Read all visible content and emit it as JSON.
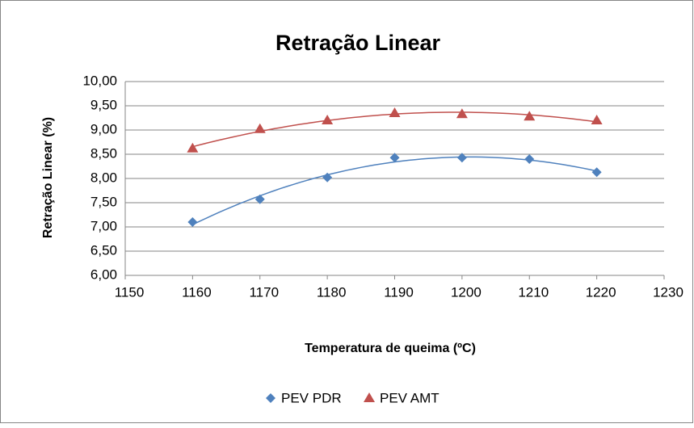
{
  "chart_data": {
    "type": "scatter",
    "title": "Retração Linear",
    "xlabel": "Temperatura de queima (ºC)",
    "ylabel": "Retração Linear (%)",
    "x": [
      1160,
      1170,
      1180,
      1190,
      1200,
      1210,
      1220
    ],
    "series": [
      {
        "name": "PEV PDR",
        "color": "#4f81bd",
        "marker": "diamond",
        "values": [
          7.1,
          7.57,
          8.02,
          8.43,
          8.43,
          8.4,
          8.13
        ]
      },
      {
        "name": "PEV AMT",
        "color": "#c0504d",
        "marker": "triangle",
        "values": [
          8.62,
          9.02,
          9.2,
          9.35,
          9.33,
          9.28,
          9.2
        ]
      }
    ],
    "trendline": "polynomial",
    "xlim": [
      1150,
      1230
    ],
    "xticks": [
      1150,
      1160,
      1170,
      1180,
      1190,
      1200,
      1210,
      1220,
      1230
    ],
    "ylim": [
      6,
      10
    ],
    "yticks": [
      {
        "value": 6,
        "label": "6,00"
      },
      {
        "value": 6.5,
        "label": "6,50"
      },
      {
        "value": 7,
        "label": "7,00"
      },
      {
        "value": 7.5,
        "label": "7,50"
      },
      {
        "value": 8,
        "label": "8,00"
      },
      {
        "value": 8.5,
        "label": "8,50"
      },
      {
        "value": 9,
        "label": "9,00"
      },
      {
        "value": 9.5,
        "label": "9,50"
      },
      {
        "value": 10,
        "label": "10,00"
      }
    ],
    "grid": true,
    "legend": "bottom"
  }
}
